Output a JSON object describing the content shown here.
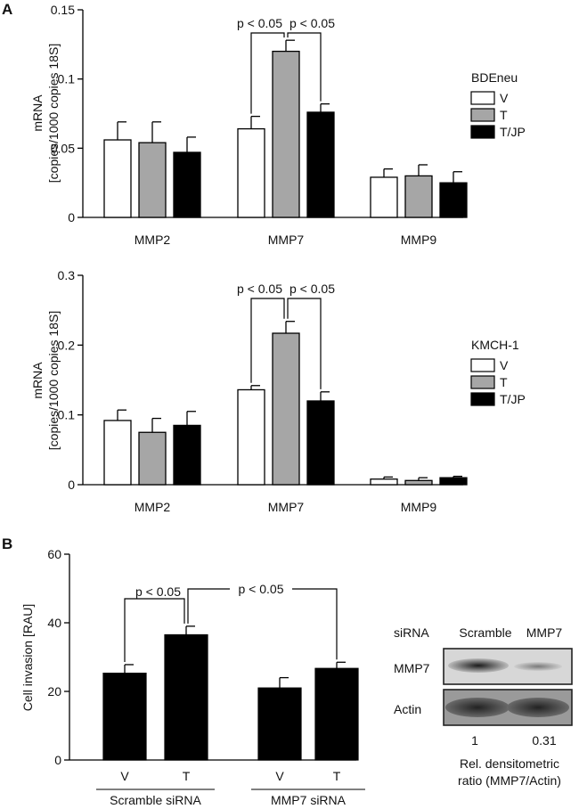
{
  "panels": {
    "A": "A",
    "B": "B"
  },
  "chart_data": [
    {
      "type": "bar",
      "legend_title": "BDEneu",
      "legend_placement": "right",
      "ylabel": [
        "mRNA",
        "[copies/1000 copies 18S]"
      ],
      "ylim": [
        0,
        0.15
      ],
      "yticks": [
        0,
        0.05,
        0.1,
        0.15
      ],
      "ytick_labels": [
        "0",
        "0.05",
        "0.1",
        "0.15"
      ],
      "categories": [
        "MMP2",
        "MMP7",
        "MMP9"
      ],
      "series": [
        {
          "name": "V",
          "color": "#ffffff",
          "values": [
            0.056,
            0.064,
            0.029
          ],
          "errors": [
            0.013,
            0.009,
            0.006
          ]
        },
        {
          "name": "T",
          "color": "#a6a6a6",
          "values": [
            0.054,
            0.12,
            0.03
          ],
          "errors": [
            0.015,
            0.008,
            0.008
          ]
        },
        {
          "name": "T/JP",
          "color": "#000000",
          "values": [
            0.047,
            0.076,
            0.025
          ],
          "errors": [
            0.011,
            0.006,
            0.008
          ]
        }
      ],
      "annotations": [
        {
          "text": "p < 0.05",
          "category": "MMP7",
          "from": "V",
          "to": "T"
        },
        {
          "text": "p < 0.05",
          "category": "MMP7",
          "from": "T",
          "to": "T/JP"
        }
      ]
    },
    {
      "type": "bar",
      "legend_title": "KMCH-1",
      "legend_placement": "right",
      "ylabel": [
        "mRNA",
        "[copies/1000 copies 18S]"
      ],
      "ylim": [
        0,
        0.3
      ],
      "yticks": [
        0,
        0.1,
        0.2,
        0.3
      ],
      "ytick_labels": [
        "0",
        "0.1",
        "0.2",
        "0.3"
      ],
      "categories": [
        "MMP2",
        "MMP7",
        "MMP9"
      ],
      "series": [
        {
          "name": "V",
          "color": "#ffffff",
          "values": [
            0.092,
            0.136,
            0.008
          ],
          "errors": [
            0.015,
            0.006,
            0.003
          ]
        },
        {
          "name": "T",
          "color": "#a6a6a6",
          "values": [
            0.075,
            0.217,
            0.006
          ],
          "errors": [
            0.02,
            0.017,
            0.004
          ]
        },
        {
          "name": "T/JP",
          "color": "#000000",
          "values": [
            0.085,
            0.12,
            0.01
          ],
          "errors": [
            0.02,
            0.013,
            0.002
          ]
        }
      ],
      "annotations": [
        {
          "text": "p < 0.05",
          "category": "MMP7",
          "from": "V",
          "to": "T"
        },
        {
          "text": "p < 0.05",
          "category": "MMP7",
          "from": "T",
          "to": "T/JP"
        }
      ]
    },
    {
      "type": "bar",
      "ylabel": [
        "Cell invasion [RAU]"
      ],
      "ylim": [
        0,
        60
      ],
      "yticks": [
        0,
        20,
        40,
        60
      ],
      "ytick_labels": [
        "0",
        "20",
        "40",
        "60"
      ],
      "groups": [
        {
          "label": "Scramble siRNA",
          "bars": [
            {
              "label": "V",
              "value": 25.3,
              "error": 2.5
            },
            {
              "label": "T",
              "value": 36.5,
              "error": 2.5
            }
          ]
        },
        {
          "label": "MMP7 siRNA",
          "bars": [
            {
              "label": "V",
              "value": 21.0,
              "error": 3.0
            },
            {
              "label": "T",
              "value": 26.7,
              "error": 1.8
            }
          ]
        }
      ],
      "color": "#000000",
      "annotations": [
        {
          "text": "p < 0.05",
          "from": "Scramble siRNA V",
          "to": "Scramble siRNA T"
        },
        {
          "text": "p < 0.05",
          "from": "Scramble siRNA T",
          "to": "MMP7 siRNA T"
        }
      ]
    }
  ],
  "blot": {
    "header_label": "siRNA",
    "lanes": [
      "Scramble",
      "MMP7"
    ],
    "rows": [
      "MMP7",
      "Actin"
    ],
    "ratios": [
      "1",
      "0.31"
    ],
    "caption": [
      "Rel.  densitometric",
      "ratio (MMP7/Actin)"
    ]
  }
}
